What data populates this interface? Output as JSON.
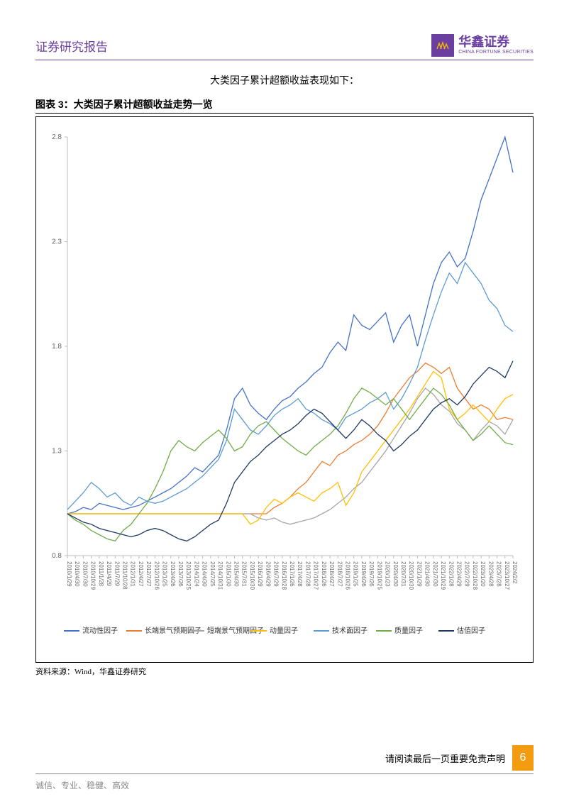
{
  "header": {
    "report_title": "证券研究报告",
    "logo_cn": "华鑫证券",
    "logo_en": "CHINA FORTUNE SECURITIES"
  },
  "intro_text": "大类因子累计超额收益表现如下：",
  "figure_title": "图表 3：大类因子累计超额收益走势一览",
  "source": "资料来源：Wind，华鑫证券研究",
  "footer": {
    "disclaimer": "请阅读最后一页重要免责声明",
    "page_number": "6",
    "motto": "诚信、专业、稳健、高效"
  },
  "chart": {
    "type": "line",
    "background_color": "#ffffff",
    "ylim": [
      0.8,
      2.8
    ],
    "yticks": [
      0.8,
      1.3,
      1.8,
      2.3,
      2.8
    ],
    "ytick_labels": [
      "0.8",
      "1.3",
      "1.8",
      "2.3",
      "2.8"
    ],
    "axis_color": "#bdbdbd",
    "tick_color": "#bdbdbd",
    "ytick_fontsize": 10,
    "xtick_fontsize": 8,
    "xtick_rotation": 90,
    "xticks": [
      "2010/1/29",
      "2010/4/30",
      "2010/7/30",
      "2010/10/29",
      "2011/1/28",
      "2011/4/29",
      "2011/7/29",
      "2011/10/28",
      "2012/1/31",
      "2012/4/27",
      "2012/7/27",
      "2012/10/26",
      "2013/1/25",
      "2013/4/26",
      "2013/7/26",
      "2013/10/25",
      "2014/1/24",
      "2014/4/30",
      "2014/7/25",
      "2014/10/31",
      "2015/1/30",
      "2015/4/30",
      "2015/7/31",
      "2015/10/30",
      "2016/1/29",
      "2016/4/29",
      "2016/7/29",
      "2016/10/28",
      "2017/1/26",
      "2017/4/28",
      "2017/7/28",
      "2017/10/27",
      "2018/1/26",
      "2018/4/27",
      "2018/7/27",
      "2018/10/26",
      "2019/1/25",
      "2019/4/26",
      "2019/7/26",
      "2019/10/25",
      "2020/1/23",
      "2020/4/30",
      "2020/7/31",
      "2020/10/30",
      "2021/1/29",
      "2021/4/30",
      "2021/7/30",
      "2021/10/29",
      "2022/1/28",
      "2022/4/29",
      "2022/7/29",
      "2022/10/28",
      "2023/1/20",
      "2023/4/28",
      "2023/7/28",
      "2023/10/27",
      "2024/2/2"
    ],
    "legend_position": "bottom",
    "legend_fontsize": 10,
    "line_width": 1.3,
    "series": [
      {
        "name": "流动性因子",
        "color": "#4472c4",
        "data": [
          1.0,
          1.01,
          1.03,
          1.02,
          1.05,
          1.04,
          1.03,
          1.02,
          1.03,
          1.04,
          1.06,
          1.08,
          1.1,
          1.12,
          1.15,
          1.18,
          1.22,
          1.2,
          1.24,
          1.28,
          1.4,
          1.55,
          1.6,
          1.52,
          1.48,
          1.45,
          1.5,
          1.54,
          1.56,
          1.6,
          1.63,
          1.67,
          1.7,
          1.77,
          1.82,
          1.78,
          1.95,
          1.9,
          1.88,
          1.92,
          1.96,
          1.82,
          1.9,
          1.95,
          1.8,
          1.95,
          2.1,
          2.2,
          2.25,
          2.18,
          2.22,
          2.35,
          2.5,
          2.6,
          2.7,
          2.8,
          2.63
        ]
      },
      {
        "name": "长端景气预期因子",
        "color": "#ed7d31",
        "data": [
          1.0,
          1.0,
          1.0,
          1.0,
          1.0,
          1.0,
          1.0,
          1.0,
          1.0,
          1.0,
          1.0,
          1.0,
          1.0,
          1.0,
          1.0,
          1.0,
          1.0,
          1.0,
          1.0,
          1.0,
          1.0,
          1.0,
          1.0,
          1.0,
          1.0,
          1.0,
          1.03,
          1.05,
          1.08,
          1.12,
          1.15,
          1.2,
          1.25,
          1.23,
          1.28,
          1.3,
          1.33,
          1.35,
          1.38,
          1.42,
          1.48,
          1.55,
          1.6,
          1.65,
          1.68,
          1.72,
          1.7,
          1.67,
          1.7,
          1.6,
          1.55,
          1.5,
          1.52,
          1.5,
          1.45,
          1.46,
          1.45
        ]
      },
      {
        "name": "短端景气预期因子",
        "color": "#a6a6a6",
        "data": [
          1.0,
          1.0,
          1.0,
          1.0,
          1.0,
          1.0,
          1.0,
          1.0,
          1.0,
          1.0,
          1.0,
          1.0,
          1.0,
          1.0,
          1.0,
          1.0,
          1.0,
          1.0,
          1.0,
          1.0,
          1.0,
          1.0,
          1.0,
          1.0,
          0.98,
          0.97,
          0.98,
          0.96,
          0.95,
          0.96,
          0.97,
          0.98,
          1.0,
          1.02,
          1.05,
          1.08,
          1.12,
          1.15,
          1.2,
          1.25,
          1.3,
          1.36,
          1.42,
          1.48,
          1.55,
          1.6,
          1.57,
          1.52,
          1.49,
          1.43,
          1.4,
          1.35,
          1.4,
          1.44,
          1.42,
          1.38,
          1.45
        ]
      },
      {
        "name": "动量因子",
        "color": "#ffc000",
        "data": [
          1.0,
          1.0,
          1.0,
          1.0,
          1.0,
          1.0,
          1.0,
          1.0,
          1.0,
          1.0,
          1.0,
          1.0,
          1.0,
          1.0,
          1.0,
          1.0,
          1.0,
          1.0,
          1.0,
          1.0,
          1.0,
          1.0,
          1.0,
          0.95,
          0.97,
          1.03,
          1.07,
          1.05,
          1.08,
          1.1,
          1.08,
          1.06,
          1.1,
          1.12,
          1.15,
          1.04,
          1.1,
          1.2,
          1.25,
          1.3,
          1.35,
          1.4,
          1.45,
          1.5,
          1.56,
          1.62,
          1.68,
          1.65,
          1.5,
          1.45,
          1.48,
          1.52,
          1.48,
          1.44,
          1.5,
          1.55,
          1.57
        ]
      },
      {
        "name": "技术面因子",
        "color": "#5b9bd5",
        "data": [
          1.02,
          1.06,
          1.1,
          1.15,
          1.12,
          1.08,
          1.1,
          1.06,
          1.04,
          1.08,
          1.06,
          1.05,
          1.06,
          1.08,
          1.1,
          1.12,
          1.15,
          1.18,
          1.22,
          1.26,
          1.35,
          1.5,
          1.45,
          1.4,
          1.38,
          1.42,
          1.47,
          1.5,
          1.52,
          1.55,
          1.5,
          1.48,
          1.45,
          1.43,
          1.4,
          1.46,
          1.48,
          1.5,
          1.53,
          1.55,
          1.58,
          1.5,
          1.55,
          1.62,
          1.7,
          1.83,
          1.95,
          2.06,
          2.15,
          2.1,
          2.2,
          2.15,
          2.1,
          2.02,
          1.98,
          1.9,
          1.87
        ]
      },
      {
        "name": "质量因子",
        "color": "#70ad47",
        "data": [
          1.0,
          0.97,
          0.95,
          0.92,
          0.9,
          0.88,
          0.87,
          0.92,
          0.95,
          1.0,
          1.05,
          1.12,
          1.2,
          1.3,
          1.35,
          1.32,
          1.3,
          1.34,
          1.37,
          1.4,
          1.36,
          1.3,
          1.32,
          1.38,
          1.42,
          1.44,
          1.4,
          1.36,
          1.33,
          1.3,
          1.28,
          1.32,
          1.35,
          1.38,
          1.42,
          1.48,
          1.55,
          1.6,
          1.58,
          1.55,
          1.52,
          1.55,
          1.5,
          1.45,
          1.5,
          1.55,
          1.6,
          1.57,
          1.52,
          1.45,
          1.4,
          1.35,
          1.38,
          1.42,
          1.38,
          1.34,
          1.33
        ]
      },
      {
        "name": "估值因子",
        "color": "#1f3864",
        "data": [
          1.0,
          0.98,
          0.96,
          0.95,
          0.93,
          0.92,
          0.91,
          0.9,
          0.89,
          0.9,
          0.92,
          0.93,
          0.92,
          0.9,
          0.88,
          0.87,
          0.89,
          0.92,
          0.95,
          0.97,
          1.05,
          1.15,
          1.2,
          1.25,
          1.28,
          1.32,
          1.35,
          1.38,
          1.4,
          1.43,
          1.47,
          1.5,
          1.48,
          1.44,
          1.4,
          1.36,
          1.4,
          1.45,
          1.42,
          1.38,
          1.35,
          1.3,
          1.33,
          1.37,
          1.4,
          1.45,
          1.5,
          1.53,
          1.55,
          1.52,
          1.56,
          1.62,
          1.66,
          1.7,
          1.68,
          1.65,
          1.73
        ]
      }
    ]
  }
}
